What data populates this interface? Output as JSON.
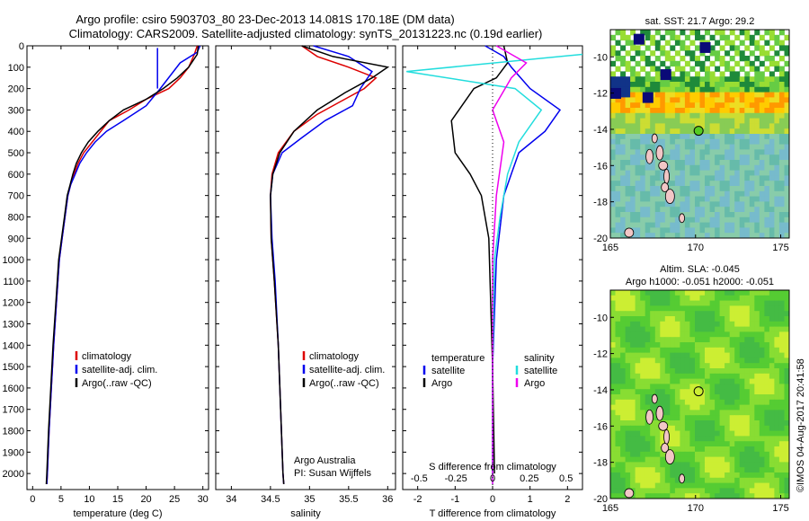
{
  "header": {
    "line1": "Argo profile: csiro 5903703_80 23-Dec-2013 14.081S 170.18E (DM data)",
    "line2": "Climatology: CARS2009. Satellite-adjusted climatology: synTS_20131223.nc (0.19d earlier)"
  },
  "credit": "©IMOS 04-Aug-2017 20:41:58",
  "colors": {
    "climatology": "#dd0000",
    "satellite": "#0000ee",
    "argo": "#000000",
    "salinity_satellite": "#22dddd",
    "salinity_argo": "#ee00ee"
  },
  "chart_data": [
    {
      "type": "line",
      "id": "temperature",
      "xlabel": "temperature (deg C)",
      "xlim": [
        -1,
        31
      ],
      "ylim": [
        2075,
        0
      ],
      "xticks": [
        0,
        5,
        10,
        15,
        20,
        25,
        30
      ],
      "legend": [
        "climatology",
        "satellite-adj. clim.",
        "Argo(..raw -QC)"
      ],
      "series": [
        {
          "name": "climatology",
          "color": "#dd0000",
          "points": [
            [
              29,
              0
            ],
            [
              28.5,
              40
            ],
            [
              27.5,
              100
            ],
            [
              26,
              150
            ],
            [
              24,
              200
            ],
            [
              20,
              250
            ],
            [
              17,
              300
            ],
            [
              13.5,
              350
            ],
            [
              12,
              400
            ],
            [
              10.5,
              450
            ],
            [
              9,
              500
            ],
            [
              8,
              550
            ],
            [
              7.3,
              600
            ],
            [
              6.7,
              650
            ],
            [
              6.2,
              700
            ],
            [
              5.7,
              800
            ],
            [
              5.2,
              900
            ],
            [
              4.7,
              1000
            ],
            [
              4.2,
              1200
            ],
            [
              3.7,
              1400
            ],
            [
              3.3,
              1600
            ],
            [
              2.9,
              1800
            ],
            [
              2.6,
              2000
            ],
            [
              2.5,
              2050
            ]
          ]
        },
        {
          "name": "satellite-adj. clim.",
          "color": "#0000ee",
          "points": [
            [
              29.5,
              0
            ],
            [
              29,
              30
            ],
            [
              26,
              80
            ],
            [
              22.5,
              200
            ],
            [
              20,
              280
            ],
            [
              16,
              350
            ],
            [
              13,
              400
            ],
            [
              11,
              450
            ],
            [
              9.5,
              500
            ],
            [
              8.3,
              550
            ],
            [
              7.5,
              600
            ],
            [
              6.7,
              650
            ],
            [
              6.2,
              700
            ],
            [
              5.7,
              800
            ],
            [
              5.2,
              900
            ],
            [
              4.7,
              1000
            ],
            [
              4.2,
              1200
            ],
            [
              3.7,
              1400
            ],
            [
              3.3,
              1600
            ],
            [
              2.9,
              1800
            ],
            [
              2.6,
              2000
            ],
            [
              2.5,
              2050
            ]
          ]
        },
        {
          "name": "Argo(..raw -QC)",
          "color": "#000000",
          "points": [
            [
              29.2,
              0
            ],
            [
              29,
              40
            ],
            [
              27.5,
              100
            ],
            [
              25.5,
              150
            ],
            [
              23,
              200
            ],
            [
              20,
              250
            ],
            [
              16,
              300
            ],
            [
              13.5,
              350
            ],
            [
              11.5,
              400
            ],
            [
              9.8,
              450
            ],
            [
              8.6,
              500
            ],
            [
              7.7,
              550
            ],
            [
              7.1,
              600
            ],
            [
              6.6,
              650
            ],
            [
              6.1,
              700
            ],
            [
              5.6,
              800
            ],
            [
              5.1,
              900
            ],
            [
              4.6,
              1000
            ],
            [
              4.1,
              1200
            ],
            [
              3.6,
              1400
            ],
            [
              3.2,
              1600
            ],
            [
              2.8,
              1800
            ],
            [
              2.5,
              2000
            ],
            [
              2.4,
              2050
            ]
          ]
        },
        {
          "name": "satellite-adj. clim. mixed layer",
          "color": "#0000ee",
          "points": [
            [
              22,
              10
            ],
            [
              22,
              200
            ]
          ]
        }
      ]
    },
    {
      "type": "line",
      "id": "salinity",
      "xlabel": "salinity",
      "xlim": [
        33.8,
        36.1
      ],
      "ylim": [
        2075,
        0
      ],
      "xticks": [
        34,
        34.5,
        35,
        35.5,
        36
      ],
      "legend": [
        "climatology",
        "satellite-adj. clim.",
        "Argo(..raw -QC)"
      ],
      "annotation": [
        "Argo Australia",
        "PI: Susan Wijffels"
      ],
      "series": [
        {
          "name": "climatology",
          "color": "#dd0000",
          "points": [
            [
              34.9,
              0
            ],
            [
              35.1,
              50
            ],
            [
              35.5,
              100
            ],
            [
              35.85,
              150
            ],
            [
              35.7,
              200
            ],
            [
              35.45,
              250
            ],
            [
              35.1,
              320
            ],
            [
              34.8,
              400
            ],
            [
              34.6,
              500
            ],
            [
              34.52,
              600
            ],
            [
              34.5,
              700
            ],
            [
              34.51,
              900
            ],
            [
              34.55,
              1100
            ],
            [
              34.6,
              1400
            ],
            [
              34.63,
              1700
            ],
            [
              34.66,
              2000
            ],
            [
              34.67,
              2050
            ]
          ]
        },
        {
          "name": "satellite-adj. clim.",
          "color": "#0000ee",
          "points": [
            [
              35.05,
              0
            ],
            [
              35.5,
              50
            ],
            [
              35.8,
              120
            ],
            [
              35.65,
              200
            ],
            [
              35.55,
              280
            ],
            [
              35.2,
              350
            ],
            [
              34.9,
              430
            ],
            [
              34.65,
              500
            ],
            [
              34.53,
              600
            ],
            [
              34.5,
              700
            ],
            [
              34.52,
              900
            ],
            [
              34.56,
              1100
            ],
            [
              34.6,
              1400
            ],
            [
              34.63,
              1700
            ],
            [
              34.66,
              2000
            ],
            [
              34.67,
              2050
            ]
          ]
        },
        {
          "name": "Argo(..raw -QC)",
          "color": "#000000",
          "points": [
            [
              34.9,
              0
            ],
            [
              35.3,
              50
            ],
            [
              36.0,
              100
            ],
            [
              35.8,
              150
            ],
            [
              35.45,
              220
            ],
            [
              35.1,
              300
            ],
            [
              34.8,
              400
            ],
            [
              34.62,
              500
            ],
            [
              34.53,
              600
            ],
            [
              34.5,
              700
            ],
            [
              34.51,
              900
            ],
            [
              34.55,
              1100
            ],
            [
              34.6,
              1400
            ],
            [
              34.63,
              1700
            ],
            [
              34.66,
              2000
            ],
            [
              34.67,
              2050
            ]
          ]
        }
      ]
    },
    {
      "type": "line",
      "id": "difference",
      "xlabel": "T difference from climatology",
      "x2label": "S difference from climatology",
      "xlim": [
        -2.4,
        2.4
      ],
      "ylim": [
        2075,
        0
      ],
      "xticks": [
        -2,
        -1,
        0,
        1,
        2
      ],
      "x2ticks": [
        "-0.5",
        "-0.25",
        "0",
        "0.25",
        "0.5"
      ],
      "legend": [
        "temperature",
        "satellite",
        "Argo",
        "salinity",
        "satellite",
        "Argo"
      ],
      "series": [
        {
          "name": "satellite",
          "group": "temperature",
          "color": "#0000ee",
          "points": [
            [
              -0.2,
              0
            ],
            [
              0.3,
              50
            ],
            [
              0.5,
              100
            ],
            [
              1.0,
              200
            ],
            [
              1.8,
              300
            ],
            [
              1.4,
              400
            ],
            [
              0.7,
              500
            ],
            [
              0.5,
              600
            ],
            [
              0.3,
              700
            ],
            [
              0.1,
              1000
            ],
            [
              0.0,
              1500
            ],
            [
              0.0,
              2000
            ]
          ]
        },
        {
          "name": "Argo",
          "group": "temperature",
          "color": "#000000",
          "points": [
            [
              0.3,
              0
            ],
            [
              0.4,
              80
            ],
            [
              0.1,
              150
            ],
            [
              -0.5,
              200
            ],
            [
              -1.1,
              350
            ],
            [
              -1.0,
              500
            ],
            [
              -0.6,
              600
            ],
            [
              -0.3,
              700
            ],
            [
              -0.1,
              900
            ],
            [
              0.0,
              1500
            ],
            [
              0.05,
              2000
            ]
          ]
        },
        {
          "name": "satellite",
          "group": "salinity",
          "color": "#22dddd",
          "points": [
            [
              2.4,
              40
            ],
            [
              -2.3,
              120
            ],
            [
              0.6,
              200
            ],
            [
              1.3,
              300
            ],
            [
              0.7,
              450
            ],
            [
              0.4,
              600
            ],
            [
              0.2,
              800
            ],
            [
              0.05,
              1000
            ],
            [
              0.0,
              1500
            ],
            [
              0.0,
              2050
            ]
          ]
        },
        {
          "name": "Argo",
          "group": "salinity",
          "color": "#ee00ee",
          "points": [
            [
              0.1,
              0
            ],
            [
              0.9,
              80
            ],
            [
              0.5,
              150
            ],
            [
              0.0,
              300
            ],
            [
              0.3,
              450
            ],
            [
              0.1,
              700
            ],
            [
              0.0,
              1000
            ],
            [
              0.0,
              2050
            ]
          ]
        }
      ]
    },
    {
      "type": "heatmap",
      "id": "sst-map",
      "title": "sat. SST: 21.7 Argo: 29.2",
      "xlim": [
        165,
        175.5
      ],
      "ylim": [
        -20,
        -8.5
      ],
      "xticks": [
        165,
        170,
        175
      ],
      "yticks": [
        -10,
        -12,
        -14,
        -16,
        -18,
        -20
      ],
      "marker": [
        170.18,
        -14.081
      ]
    },
    {
      "type": "heatmap",
      "id": "sla-map",
      "title": "Altim. SLA: -0.045",
      "subtitle": "Argo h1000: -0.051 h2000: -0.051",
      "xlim": [
        165,
        175.5
      ],
      "ylim": [
        -20,
        -8.5
      ],
      "xticks": [
        165,
        170,
        175
      ],
      "yticks": [
        -10,
        -12,
        -14,
        -16,
        -18,
        -20
      ],
      "marker": [
        170.18,
        -14.081
      ]
    }
  ],
  "depth_ticks": [
    0,
    100,
    200,
    300,
    400,
    500,
    600,
    700,
    800,
    900,
    1000,
    1100,
    1200,
    1300,
    1400,
    1500,
    1600,
    1700,
    1800,
    1900,
    2000
  ]
}
